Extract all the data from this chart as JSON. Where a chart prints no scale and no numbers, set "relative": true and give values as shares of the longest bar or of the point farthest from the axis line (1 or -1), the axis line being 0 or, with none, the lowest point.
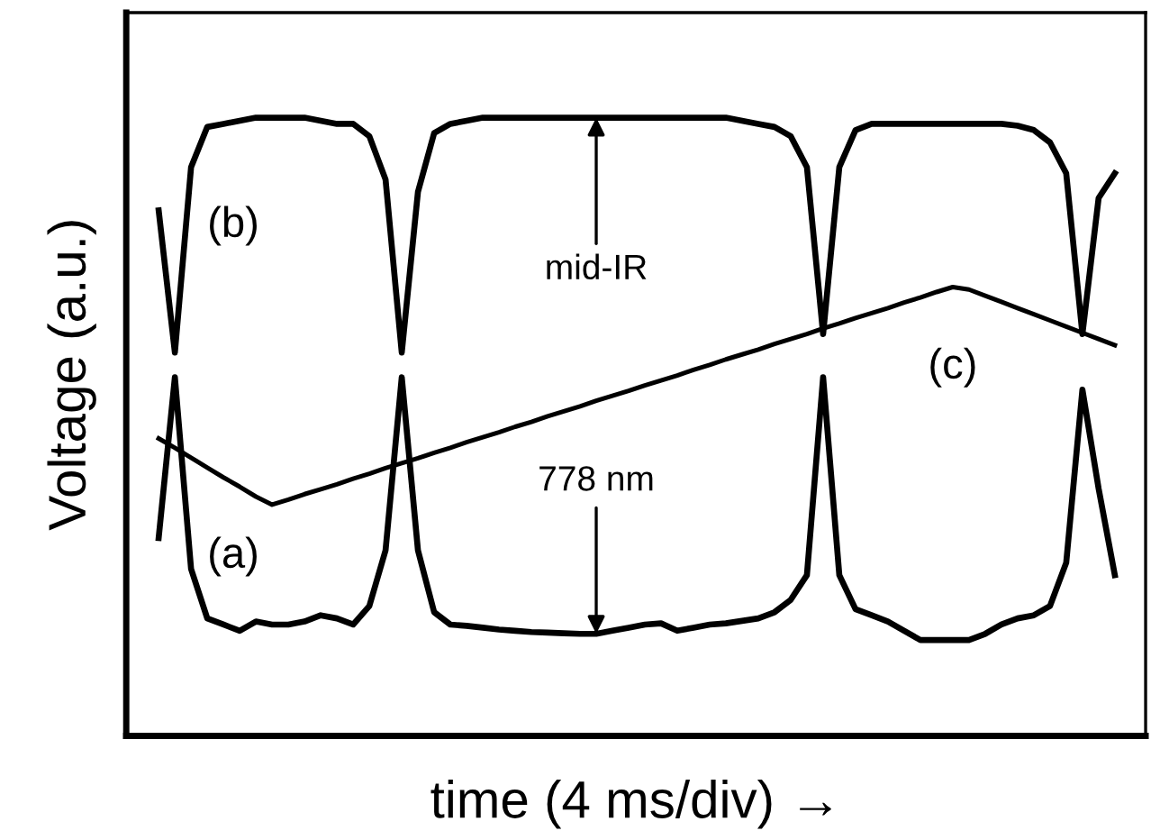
{
  "chart_data": {
    "type": "line",
    "relative": true,
    "xlabel": "time (4 ms/div) →",
    "ylabel": "Voltage (a.u.)",
    "categories": [
      null,
      null,
      null,
      null,
      null,
      null,
      null,
      null,
      null,
      null,
      null,
      null,
      null,
      null,
      null,
      null,
      null,
      null,
      null,
      null,
      null,
      null,
      null,
      null,
      null,
      null,
      null,
      null,
      null,
      null,
      null,
      null,
      null,
      null,
      null,
      null,
      null,
      null,
      null,
      null,
      null,
      null,
      null,
      null,
      null,
      null,
      null,
      null,
      null,
      null,
      null,
      null,
      null,
      null,
      null,
      null,
      null,
      null,
      null,
      null
    ],
    "series": [
      {
        "name": "(a)",
        "color": "#000000",
        "values": [
          0.32,
          0.58,
          0.27,
          0.19,
          0.18,
          0.17,
          0.185,
          0.18,
          0.18,
          0.185,
          0.195,
          0.19,
          0.18,
          0.21,
          0.3,
          0.58,
          0.3,
          0.2,
          0.18,
          0.178,
          0.175,
          0.172,
          0.17,
          0.168,
          0.167,
          0.166,
          0.165,
          0.165,
          0.17,
          0.175,
          0.18,
          0.182,
          0.17,
          0.175,
          0.18,
          0.182,
          0.186,
          0.19,
          0.2,
          0.22,
          0.26,
          0.58,
          0.26,
          0.205,
          0.195,
          0.185,
          0.17,
          0.155,
          0.155,
          0.155,
          0.155,
          0.165,
          0.18,
          0.19,
          0.195,
          0.21,
          0.28,
          0.56,
          0.4,
          0.26
        ]
      },
      {
        "name": "(b)",
        "color": "#000000",
        "values": [
          0.85,
          0.62,
          0.92,
          0.985,
          0.99,
          0.995,
          1.0,
          1.0,
          1.0,
          1.0,
          0.995,
          0.99,
          0.99,
          0.97,
          0.9,
          0.62,
          0.88,
          0.975,
          0.99,
          0.995,
          1.0,
          1.0,
          1.0,
          1.0,
          1.0,
          1.0,
          1.0,
          1.0,
          1.0,
          1.0,
          1.0,
          1.0,
          1.0,
          1.0,
          1.0,
          1.0,
          0.995,
          0.99,
          0.985,
          0.97,
          0.92,
          0.65,
          0.92,
          0.98,
          0.99,
          0.99,
          0.99,
          0.99,
          0.99,
          0.99,
          0.99,
          0.99,
          0.99,
          0.987,
          0.98,
          0.96,
          0.91,
          0.65,
          0.87,
          0.91
        ]
      },
      {
        "name": "(c)",
        "color": "#000000",
        "values": [
          0.481,
          0.466,
          0.45,
          0.434,
          0.418,
          0.403,
          0.387,
          0.374,
          0.382,
          0.391,
          0.399,
          0.407,
          0.416,
          0.424,
          0.433,
          0.441,
          0.449,
          0.458,
          0.466,
          0.475,
          0.483,
          0.491,
          0.5,
          0.508,
          0.517,
          0.525,
          0.533,
          0.542,
          0.55,
          0.558,
          0.567,
          0.575,
          0.583,
          0.592,
          0.6,
          0.609,
          0.617,
          0.625,
          0.634,
          0.642,
          0.65,
          0.659,
          0.667,
          0.676,
          0.684,
          0.692,
          0.701,
          0.709,
          0.718,
          0.726,
          0.722,
          0.712,
          0.702,
          0.692,
          0.682,
          0.672,
          0.662,
          0.652,
          0.642,
          0.632
        ]
      }
    ],
    "annotations": [
      "mid-IR",
      "778 nm"
    ]
  }
}
